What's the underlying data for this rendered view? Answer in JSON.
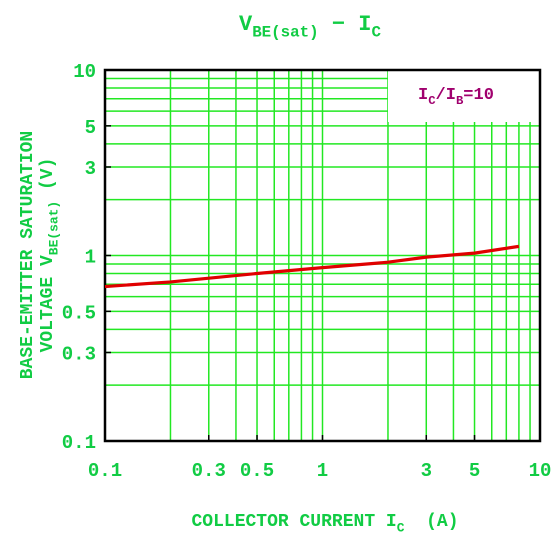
{
  "chart_data": {
    "type": "line",
    "title": [
      {
        "text": "V"
      },
      {
        "text": "BE(sat)",
        "sub": true
      },
      {
        "text": " − I"
      },
      {
        "text": "C",
        "sub": true
      }
    ],
    "x_label": [
      {
        "text": "COLLECTOR CURRENT I"
      },
      {
        "text": "C",
        "sub": true
      },
      {
        "text": "  (A)"
      }
    ],
    "y_label": [
      [
        {
          "text": "BASE-EMITTER SATURATION"
        }
      ],
      [
        {
          "text": "VOLTAGE V"
        },
        {
          "text": "BE(sat)",
          "sub": true
        },
        {
          "text": " (V)"
        }
      ]
    ],
    "annotation": [
      {
        "text": "I"
      },
      {
        "text": "C",
        "sub": true
      },
      {
        "text": "/I"
      },
      {
        "text": "B",
        "sub": true
      },
      {
        "text": "=10"
      }
    ],
    "annotation_color": "#a0006e",
    "x_log": true,
    "y_log": true,
    "xlim": [
      0.1,
      10
    ],
    "ylim": [
      0.1,
      10
    ],
    "xticks": [
      0.1,
      0.3,
      0.5,
      1,
      3,
      5,
      10
    ],
    "yticks": [
      0.1,
      0.3,
      0.5,
      1,
      3,
      5,
      10
    ],
    "xgrid": [
      0.2,
      0.3,
      0.4,
      0.5,
      0.6,
      0.7,
      0.8,
      0.9,
      1,
      2,
      3,
      4,
      5,
      6,
      7,
      8,
      9
    ],
    "ygrid": [
      0.2,
      0.3,
      0.4,
      0.5,
      0.6,
      0.7,
      0.8,
      0.9,
      1,
      2,
      3,
      4,
      5,
      6,
      7,
      8,
      9
    ],
    "grid": true,
    "grid_color": "#22e822",
    "text_color": "#11cc44",
    "series": [
      {
        "name": "IC/IB=10",
        "color": "#e00000",
        "x": [
          0.1,
          0.2,
          0.5,
          1,
          2,
          3,
          5,
          8
        ],
        "values": [
          0.68,
          0.72,
          0.8,
          0.86,
          0.92,
          0.98,
          1.03,
          1.12
        ]
      }
    ]
  }
}
